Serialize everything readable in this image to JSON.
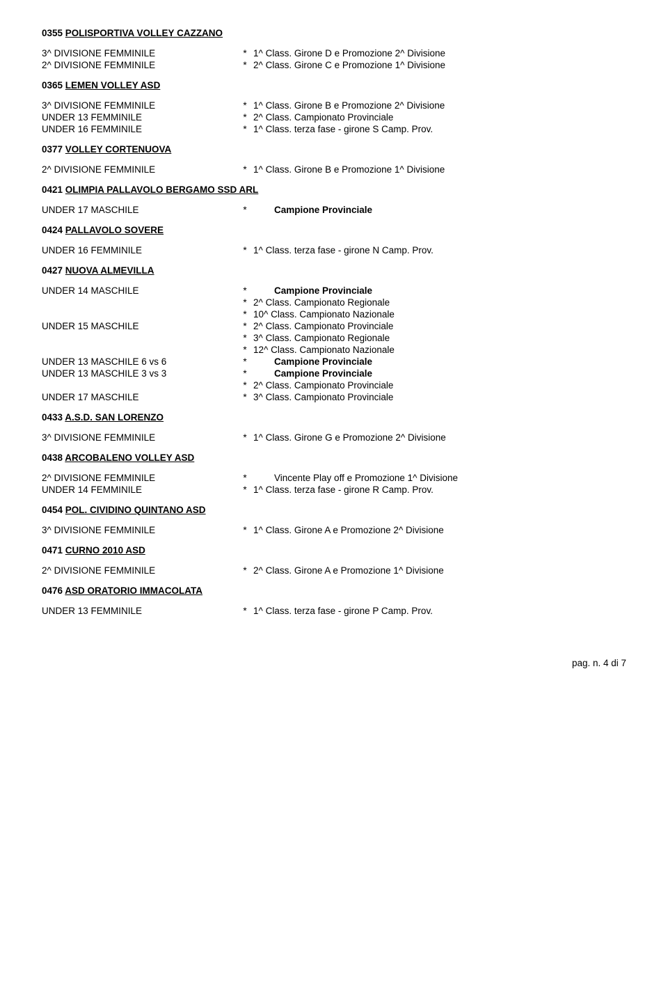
{
  "sections": [
    {
      "code": "0355",
      "name": "POLISPORTIVA VOLLEY CAZZANO",
      "rows": [
        {
          "left": "3^ DIVISIONE FEMMINILE",
          "right": "1^  Class. Girone D e Promozione 2^ Divisione"
        },
        {
          "left": "2^ DIVISIONE FEMMINILE",
          "right": "2^  Class. Girone C e Promozione 1^ Divisione"
        }
      ]
    },
    {
      "code": "0365",
      "name": "LEMEN VOLLEY ASD",
      "rows": [
        {
          "left": "3^ DIVISIONE FEMMINILE",
          "right": "1^  Class. Girone B e Promozione 2^ Divisione"
        },
        {
          "left": "UNDER 13 FEMMINILE",
          "right": "2^  Class. Campionato Provinciale"
        },
        {
          "left": "UNDER 16 FEMMINILE",
          "right": "1^  Class. terza fase - girone S Camp. Prov."
        }
      ]
    },
    {
      "code": "0377",
      "name": "VOLLEY CORTENUOVA",
      "rows": [
        {
          "left": "2^ DIVISIONE FEMMINILE",
          "right": "1^  Class. Girone B e Promozione 1^ Divisione"
        }
      ]
    },
    {
      "code": "0421",
      "name": "OLIMPIA PALLAVOLO BERGAMO SSD  ARL",
      "rows": [
        {
          "left": "UNDER 17 MASCHILE",
          "right": "Campione Provinciale",
          "bold": true,
          "indent": true
        }
      ]
    },
    {
      "code": "0424",
      "name": "PALLAVOLO  SOVERE",
      "rows": [
        {
          "left": "UNDER 16 FEMMINILE",
          "right": "1^  Class. terza fase - girone N Camp. Prov."
        }
      ]
    },
    {
      "code": "0427",
      "name": "NUOVA ALMEVILLA",
      "rows": [
        {
          "left": "UNDER 14 MASCHILE",
          "right": "Campione Provinciale",
          "bold": true,
          "indent": true
        },
        {
          "left": "",
          "right": "2^  Class. Campionato Regionale"
        },
        {
          "left": "",
          "right": "10^ Class. Campionato Nazionale"
        },
        {
          "left": "UNDER 15 MASCHILE",
          "right": "2^  Class. Campionato Provinciale"
        },
        {
          "left": "",
          "right": "3^  Class. Campionato Regionale"
        },
        {
          "left": "",
          "right": "12^ Class. Campionato Nazionale"
        },
        {
          "left": "UNDER 13 MASCHILE 6 vs 6",
          "right": "Campione Provinciale",
          "bold": true,
          "indent": true
        },
        {
          "left": "UNDER 13 MASCHILE 3 vs 3",
          "right": "Campione Provinciale",
          "bold": true,
          "indent": true
        },
        {
          "left": "",
          "right": "2^  Class. Campionato Provinciale"
        },
        {
          "left": "UNDER 17 MASCHILE",
          "right": "3^  Class. Campionato Provinciale"
        }
      ]
    },
    {
      "code": "0433",
      "name": "A.S.D. SAN LORENZO",
      "rows": [
        {
          "left": "3^ DIVISIONE FEMMINILE",
          "right": "1^  Class. Girone G e Promozione 2^ Divisione"
        }
      ]
    },
    {
      "code": "0438",
      "name": "ARCOBALENO VOLLEY ASD",
      "rows": [
        {
          "left": "2^ DIVISIONE FEMMINILE",
          "right": "Vincente Play off e Promozione 1^ Divisione",
          "indent": true
        },
        {
          "left": "UNDER 14 FEMMINILE",
          "right": "1^  Class. terza fase - girone R Camp. Prov."
        }
      ]
    },
    {
      "code": "0454",
      "name": "POL. CIVIDINO QUINTANO ASD",
      "rows": [
        {
          "left": "3^ DIVISIONE FEMMINILE",
          "right": "1^  Class. Girone A e Promozione 2^ Divisione"
        }
      ]
    },
    {
      "code": "0471",
      "name": "CURNO 2010 ASD",
      "rows": [
        {
          "left": "2^ DIVISIONE FEMMINILE",
          "right": "2^  Class. Girone A e Promozione 1^ Divisione"
        }
      ]
    },
    {
      "code": "0476",
      "name": "ASD ORATORIO IMMACOLATA",
      "rows": [
        {
          "left": "UNDER 13 FEMMINILE",
          "right": "1^  Class. terza fase - girone P Camp. Prov."
        }
      ]
    }
  ],
  "footer": "pag. n. 4 di 7"
}
